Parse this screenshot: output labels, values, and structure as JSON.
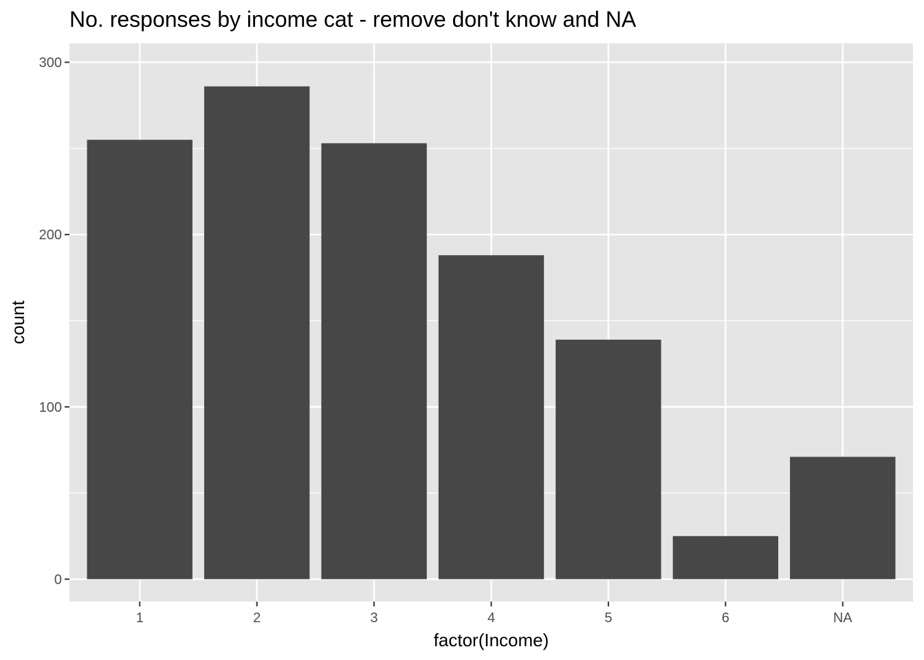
{
  "chart_data": {
    "type": "bar",
    "title": "No. responses by income cat - remove don't know and NA",
    "xlabel": "factor(Income)",
    "ylabel": "count",
    "categories": [
      "1",
      "2",
      "3",
      "4",
      "5",
      "6",
      "NA"
    ],
    "values": [
      255,
      286,
      253,
      188,
      139,
      25,
      71
    ],
    "ylim": [
      -13,
      311
    ],
    "yticks": [
      0,
      100,
      200,
      300
    ],
    "grid": true,
    "legend": "none",
    "colors": {
      "panel": "#e5e5e5",
      "grid": "#ffffff",
      "bar": "#474747",
      "tick": "#333333"
    }
  }
}
